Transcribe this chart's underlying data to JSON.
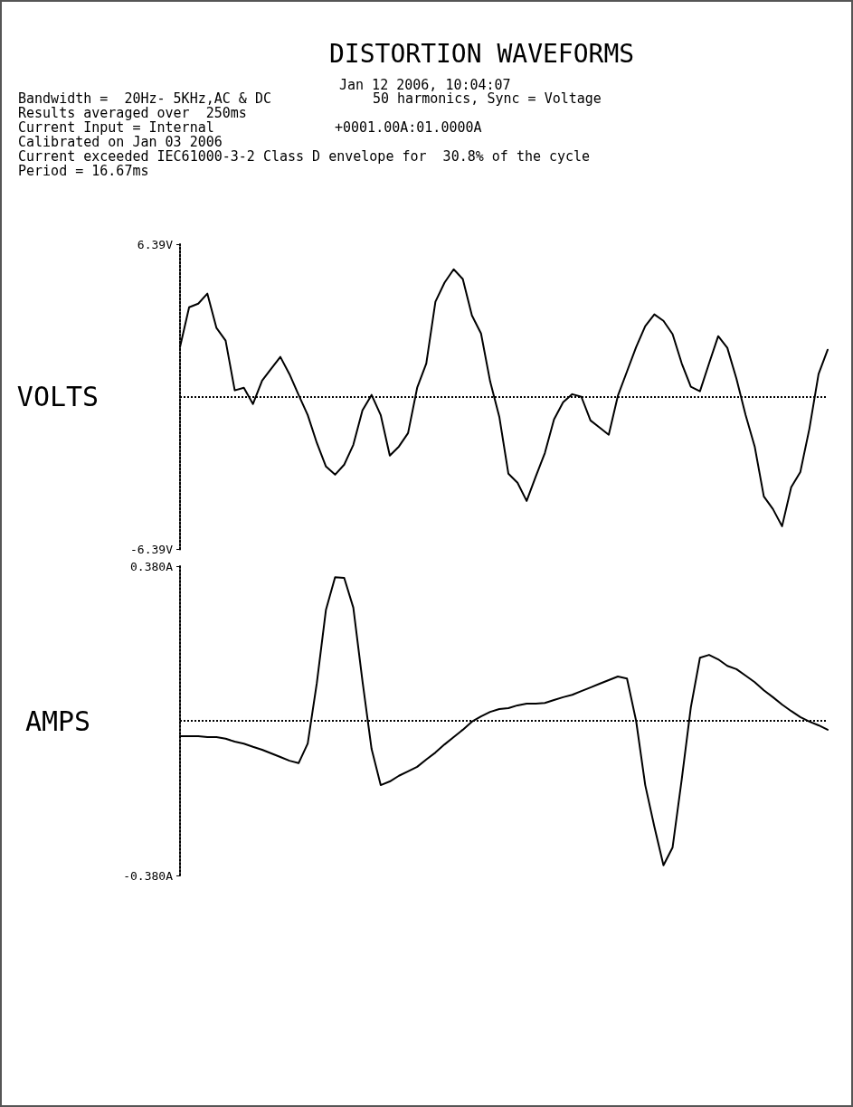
{
  "chart_data": [
    {
      "type": "line",
      "title": "DISTORTION WAVEFORMS",
      "annotations": [
        "Jan 12 2006, 10:04:07",
        "Bandwidth =  20Hz- 5KHz,AC & DC",
        "50 harmonics, Sync = Voltage",
        "Results averaged over  250ms",
        "Current Input = Internal",
        "+0001.00A:01.0000A",
        "Calibrated on Jan 03 2006",
        "Current exceeded IEC61000-3-2 Class D envelope for  30.8% of the cycle",
        "Period = 16.67ms"
      ],
      "ylabel": "VOLTS",
      "categories": [
        null,
        null,
        null,
        null,
        null,
        null,
        null,
        null,
        null,
        null,
        null,
        null,
        null,
        null,
        null,
        null,
        null,
        null,
        null,
        null,
        null,
        null,
        null,
        null,
        null,
        null,
        null,
        null,
        null,
        null,
        null,
        null,
        null,
        null,
        null,
        null,
        null,
        null,
        null,
        null,
        null,
        null,
        null,
        null,
        null,
        null,
        null,
        null,
        null,
        null,
        null,
        null,
        null,
        null,
        null,
        null,
        null,
        null,
        null,
        null,
        null,
        null,
        null,
        null,
        null,
        null,
        null,
        null,
        null,
        null,
        null,
        null
      ],
      "series": [
        {
          "color": "#000000",
          "values": [
            2.08,
            3.75,
            3.9,
            4.32,
            2.88,
            2.35,
            0.27,
            0.38,
            -0.3,
            0.68,
            1.18,
            1.67,
            0.95,
            0.08,
            -0.76,
            -1.93,
            -2.92,
            -3.26,
            -2.84,
            -2.01,
            -0.57,
            0.08,
            -0.76,
            -2.46,
            -2.08,
            -1.52,
            0.38,
            1.4,
            3.98,
            4.78,
            5.34,
            4.93,
            3.41,
            2.65,
            0.64,
            -0.83,
            -3.22,
            -3.6,
            -4.36,
            -3.34,
            -2.35,
            -0.95,
            -0.23,
            0.11,
            0.0,
            -0.99,
            -1.29,
            -1.59,
            0.04,
            1.06,
            2.08,
            2.96,
            3.45,
            3.18,
            2.62,
            1.4,
            0.42,
            0.23,
            1.4,
            2.54,
            2.05,
            0.76,
            -0.76,
            -2.08,
            -4.17,
            -4.7,
            -5.42,
            -3.79,
            -3.15,
            -1.33,
            0.95,
            1.97
          ]
        }
      ],
      "ylim": [
        -6.39,
        6.39
      ],
      "yticks": [
        {
          "value": -6.39,
          "label": "-6.39V"
        },
        {
          "value": 6.39,
          "label": "6.39V"
        }
      ],
      "ref_lines": [
        {
          "axis": "y",
          "value": 0,
          "label": null,
          "line_style": "dotted"
        }
      ],
      "tick_labels": "y",
      "marker": "none",
      "line_style": "solid",
      "grid": false
    },
    {
      "type": "line",
      "ylabel": "AMPS",
      "categories": [
        null,
        null,
        null,
        null,
        null,
        null,
        null,
        null,
        null,
        null,
        null,
        null,
        null,
        null,
        null,
        null,
        null,
        null,
        null,
        null,
        null,
        null,
        null,
        null,
        null,
        null,
        null,
        null,
        null,
        null,
        null,
        null,
        null,
        null,
        null,
        null,
        null,
        null,
        null,
        null,
        null,
        null,
        null,
        null,
        null,
        null,
        null,
        null,
        null,
        null,
        null,
        null,
        null,
        null,
        null,
        null,
        null,
        null,
        null,
        null,
        null,
        null,
        null,
        null,
        null,
        null,
        null,
        null,
        null,
        null,
        null,
        null
      ],
      "series": [
        {
          "color": "#000000",
          "values": [
            -0.038,
            -0.038,
            -0.038,
            -0.04,
            -0.04,
            -0.044,
            -0.051,
            -0.056,
            -0.064,
            -0.071,
            -0.08,
            -0.089,
            -0.098,
            -0.104,
            -0.056,
            0.093,
            0.273,
            0.353,
            0.351,
            0.278,
            0.098,
            -0.069,
            -0.158,
            -0.149,
            -0.135,
            -0.124,
            -0.113,
            -0.095,
            -0.078,
            -0.058,
            -0.04,
            -0.022,
            -0.002,
            0.011,
            0.022,
            0.029,
            0.031,
            0.038,
            0.042,
            0.042,
            0.044,
            0.051,
            0.058,
            0.064,
            0.073,
            0.082,
            0.091,
            0.1,
            0.109,
            0.104,
            0.0,
            -0.158,
            -0.26,
            -0.355,
            -0.311,
            -0.144,
            0.033,
            0.155,
            0.162,
            0.151,
            0.135,
            0.127,
            0.111,
            0.095,
            0.075,
            0.058,
            0.04,
            0.024,
            0.009,
            -0.002,
            -0.011,
            -0.022
          ]
        }
      ],
      "ylim": [
        -0.38,
        0.38
      ],
      "yticks": [
        {
          "value": -0.38,
          "label": "-0.380A"
        },
        {
          "value": 0.38,
          "label": "0.380A"
        }
      ],
      "ref_lines": [
        {
          "axis": "y",
          "value": 0,
          "label": null,
          "line_style": "dotted"
        }
      ],
      "tick_labels": "y",
      "marker": "none",
      "line_style": "solid",
      "grid": false
    }
  ]
}
